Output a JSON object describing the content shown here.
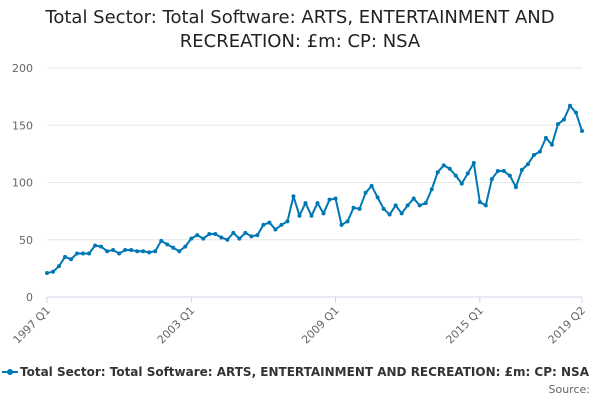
{
  "colors": {
    "series": "#0077b5"
  },
  "chart_data": {
    "type": "line",
    "title": "Total Sector: Total Software: ARTS, ENTERTAINMENT AND RECREATION: £m: CP: NSA",
    "title_lines": [
      "Total Sector: Total Software: ARTS, ENTERTAINMENT AND",
      "RECREATION: £m: CP: NSA"
    ],
    "xlabel": "",
    "ylabel": "",
    "ylim": [
      0,
      200
    ],
    "yticks": [
      0,
      50,
      100,
      150,
      200
    ],
    "x_start": "1997 Q1",
    "x_end": "2019 Q2",
    "xtick_labels": [
      {
        "label": "1997 Q1",
        "index": 0
      },
      {
        "label": "2003 Q1",
        "index": 24
      },
      {
        "label": "2009 Q1",
        "index": 48
      },
      {
        "label": "2015 Q1",
        "index": 72
      },
      {
        "label": "2019 Q2",
        "index": 89
      }
    ],
    "grid": true,
    "legend_position": "bottom",
    "series": [
      {
        "name": "Total Sector: Total Software: ARTS, ENTERTAINMENT AND RECREATION: £m: CP: NSA",
        "values": [
          21,
          22,
          27,
          35,
          33,
          38,
          38,
          38,
          45,
          44,
          40,
          41,
          38,
          41,
          41,
          40,
          40,
          39,
          40,
          49,
          46,
          43,
          40,
          44,
          51,
          54,
          51,
          55,
          55,
          52,
          50,
          56,
          51,
          56,
          53,
          54,
          63,
          65,
          59,
          63,
          66,
          88,
          71,
          82,
          71,
          82,
          73,
          85,
          86,
          63,
          66,
          78,
          77,
          91,
          97,
          87,
          77,
          72,
          80,
          73,
          80,
          86,
          80,
          82,
          94,
          109,
          115,
          112,
          106,
          99,
          108,
          117,
          83,
          80,
          103,
          110,
          110,
          106,
          96,
          111,
          116,
          124,
          127,
          139,
          133,
          151,
          155,
          167,
          161,
          145
        ]
      }
    ]
  },
  "legend": {
    "label": "Total Sector: Total Software: ARTS, ENTERTAINMENT AND RECREATION: £m: CP: NSA"
  },
  "footer": {
    "source_label": "Source:"
  }
}
